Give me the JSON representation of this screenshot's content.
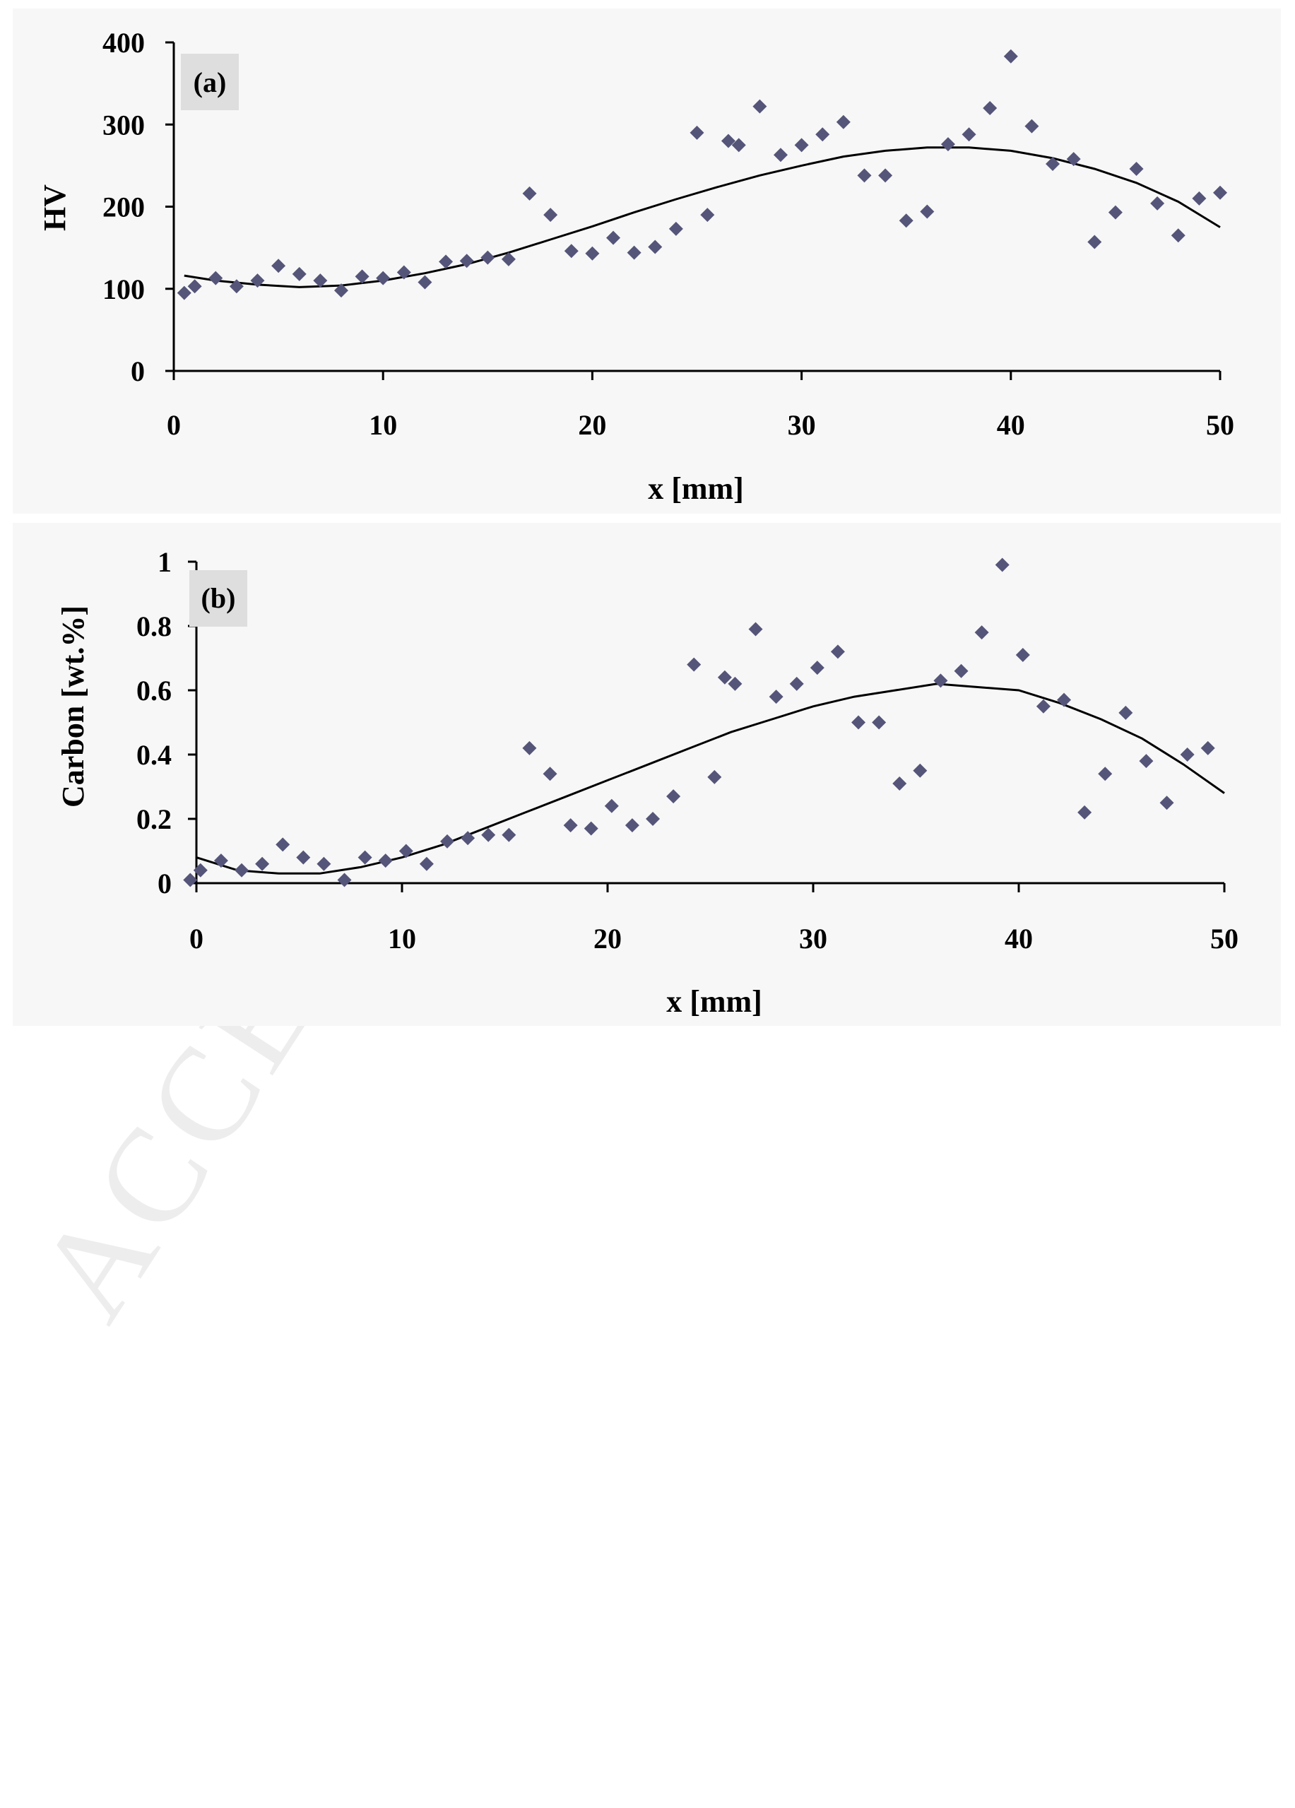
{
  "watermark": "ACCEPTED",
  "colors": {
    "marker": "#55557a",
    "trend": "#000000",
    "panel_background": "#f7f7f7",
    "panel_label_background": "#dedede"
  },
  "chart_data": [
    {
      "type": "scatter",
      "panel_label": "(a)",
      "xlabel": "x [mm]",
      "ylabel": "HV",
      "xlim": [
        0,
        50
      ],
      "ylim": [
        0,
        400
      ],
      "x_ticks": [
        "0",
        "10",
        "20",
        "30",
        "40",
        "50"
      ],
      "y_ticks": [
        "0",
        "100",
        "200",
        "300",
        "400"
      ],
      "marker": "diamond",
      "trend_line": {
        "x": [
          0.5,
          2,
          4,
          6,
          8,
          10,
          12,
          14,
          16,
          18,
          20,
          22,
          24,
          26,
          28,
          30,
          32,
          34,
          36,
          38,
          40,
          42,
          44,
          46,
          48,
          50
        ],
        "y": [
          116,
          110,
          105,
          102,
          104,
          110,
          119,
          130,
          144,
          160,
          176,
          193,
          209,
          224,
          238,
          250,
          261,
          268,
          272,
          272,
          268,
          259,
          246,
          229,
          206,
          175
        ]
      },
      "series": [
        {
          "x": [
            0.5,
            1,
            2,
            3,
            4,
            5,
            6,
            7,
            8,
            9,
            10,
            11,
            12,
            13,
            14,
            15,
            16,
            17,
            18,
            19,
            20,
            21,
            22,
            23,
            24,
            25,
            25.5,
            26.5,
            27,
            28,
            29,
            30,
            31,
            32,
            33,
            34,
            35,
            36,
            37,
            38,
            39,
            40,
            41,
            42,
            43,
            44,
            45,
            46,
            47,
            48,
            49,
            50
          ],
          "y": [
            95,
            103,
            113,
            103,
            110,
            128,
            118,
            110,
            98,
            115,
            113,
            120,
            108,
            133,
            134,
            138,
            136,
            216,
            190,
            146,
            143,
            162,
            144,
            151,
            173,
            290,
            190,
            280,
            275,
            322,
            263,
            275,
            288,
            303,
            238,
            238,
            183,
            194,
            276,
            288,
            320,
            383,
            298,
            252,
            258,
            157,
            193,
            246,
            204,
            165,
            210,
            217
          ]
        }
      ]
    },
    {
      "type": "scatter",
      "panel_label": "(b)",
      "xlabel": "x [mm]",
      "ylabel": "Carbon [wt.%]",
      "xlim": [
        0,
        50
      ],
      "ylim": [
        0,
        1
      ],
      "x_ticks": [
        "0",
        "10",
        "20",
        "30",
        "40",
        "50"
      ],
      "y_ticks": [
        "0",
        "0.2",
        "0.4",
        "0.6",
        "0.8",
        "1"
      ],
      "marker": "diamond",
      "trend_line": {
        "x": [
          0,
          2,
          4,
          6,
          8,
          10,
          12,
          14,
          16,
          18,
          20,
          22,
          24,
          26,
          28,
          30,
          32,
          34,
          36,
          38,
          40,
          42,
          44,
          46,
          48,
          50
        ],
        "y": [
          0.08,
          0.04,
          0.03,
          0.03,
          0.05,
          0.08,
          0.12,
          0.17,
          0.22,
          0.27,
          0.32,
          0.37,
          0.42,
          0.47,
          0.51,
          0.55,
          0.58,
          0.6,
          0.62,
          0.61,
          0.6,
          0.56,
          0.51,
          0.45,
          0.37,
          0.28
        ]
      },
      "series": [
        {
          "x": [
            -0.3,
            0.2,
            1.2,
            2.2,
            3.2,
            4.2,
            5.2,
            6.2,
            7.2,
            8.2,
            9.2,
            10.2,
            11.2,
            12.2,
            13.2,
            14.2,
            15.2,
            16.2,
            17.2,
            18.2,
            19.2,
            20.2,
            21.2,
            22.2,
            23.2,
            24.2,
            25.2,
            25.7,
            26.2,
            27.2,
            28.2,
            29.2,
            30.2,
            31.2,
            32.2,
            33.2,
            34.2,
            35.2,
            36.2,
            37.2,
            38.2,
            39.2,
            40.2,
            41.2,
            42.2,
            43.2,
            44.2,
            45.2,
            46.2,
            47.2,
            48.2,
            49.2
          ],
          "y": [
            0.01,
            0.04,
            0.07,
            0.04,
            0.06,
            0.12,
            0.08,
            0.06,
            0.01,
            0.08,
            0.07,
            0.1,
            0.06,
            0.13,
            0.14,
            0.15,
            0.15,
            0.42,
            0.34,
            0.18,
            0.17,
            0.24,
            0.18,
            0.2,
            0.27,
            0.68,
            0.33,
            0.64,
            0.62,
            0.79,
            0.58,
            0.62,
            0.67,
            0.72,
            0.5,
            0.5,
            0.31,
            0.35,
            0.63,
            0.66,
            0.78,
            0.99,
            0.71,
            0.55,
            0.57,
            0.22,
            0.34,
            0.53,
            0.38,
            0.25,
            0.4,
            0.42
          ]
        }
      ]
    }
  ]
}
